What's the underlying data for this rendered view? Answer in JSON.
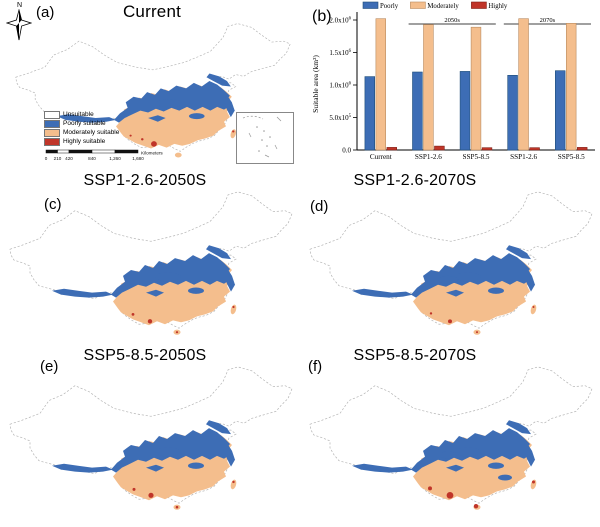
{
  "panels": {
    "a": {
      "label": "(a)",
      "title": "Current"
    },
    "b": {
      "label": "(b)"
    },
    "c": {
      "label": "(c)",
      "title": "SSP1-2.6-2050S"
    },
    "d": {
      "label": "(d)",
      "title": "SSP1-2.6-2070S"
    },
    "e": {
      "label": "(e)",
      "title": "SSP5-8.5-2050S"
    },
    "f": {
      "label": "(f)",
      "title": "SSP5-8.5-2070S"
    }
  },
  "compass": {
    "label": "N"
  },
  "map_legend": {
    "items": [
      {
        "label": "Unsuitable",
        "color": "#FFFFFF"
      },
      {
        "label": "Poorly suitable",
        "color": "#3D6DB5"
      },
      {
        "label": "Moderately suitable",
        "color": "#F4BE8D"
      },
      {
        "label": "Highly suitable",
        "color": "#C03529"
      }
    ]
  },
  "scale_bar": {
    "ticks": [
      "0",
      "210",
      "420",
      "840",
      "1,260",
      "1,680"
    ],
    "unit": "Kilometers"
  },
  "map_colors": {
    "outline": "#b3b3b3",
    "land": "#ffffff"
  },
  "chart_data": {
    "type": "bar",
    "title": "",
    "xlabel": "",
    "ylabel": "Suitable area (km²)",
    "categories": [
      "Current",
      "SSP1-2.6",
      "SSP5-8.5",
      "SSP1-2.6",
      "SSP5-8.5"
    ],
    "group_labels": [
      {
        "label": "2050s",
        "groups": [
          1,
          2
        ]
      },
      {
        "label": "2070s",
        "groups": [
          3,
          4
        ]
      }
    ],
    "series": [
      {
        "name": "Poorly",
        "color": "#3D6DB5",
        "edge": "#1F4E79",
        "values": [
          1130000,
          1200000,
          1210000,
          1150000,
          1220000
        ]
      },
      {
        "name": "Moderately",
        "color": "#F4BE8D",
        "edge": "#B98A5F",
        "values": [
          2020000,
          1930000,
          1890000,
          2020000,
          1950000
        ]
      },
      {
        "name": "Highly",
        "color": "#C03529",
        "edge": "#7E1F15",
        "values": [
          40000,
          60000,
          35000,
          35000,
          40000
        ]
      }
    ],
    "ylim": [
      0,
      2000000
    ],
    "yticks": [
      {
        "text": "0.0",
        "exp": "",
        "value": 0
      },
      {
        "text": "5.0x10",
        "exp": "5",
        "value": 500000
      },
      {
        "text": "1.0x10",
        "exp": "6",
        "value": 1000000
      },
      {
        "text": "1.5x10",
        "exp": "6",
        "value": 1500000
      },
      {
        "text": "2.0x10",
        "exp": "6",
        "value": 2000000
      }
    ],
    "legend_position": "top",
    "grid": false
  }
}
